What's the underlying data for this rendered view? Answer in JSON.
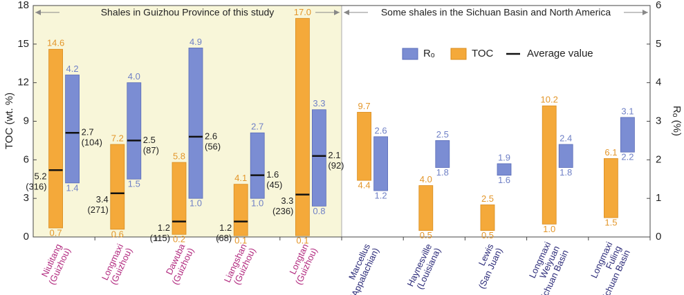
{
  "chart_data": {
    "type": "range-bar",
    "ylabel": "TOC (wt. %)",
    "y2label": "Rₒ (%)",
    "ylim": [
      0,
      18
    ],
    "yticks": [
      0,
      3,
      6,
      9,
      12,
      15,
      18
    ],
    "y2lim": [
      0,
      6
    ],
    "y2ticks": [
      0,
      1,
      2,
      3,
      4,
      5,
      6
    ],
    "categories": [
      [
        "Niutitang",
        "(Guizhou)"
      ],
      [
        "Longmaxi",
        "(Guizhou)"
      ],
      [
        "Dawuba",
        "(Guizhou)"
      ],
      [
        "Liangshan",
        "(Guizhou)"
      ],
      [
        "Longtan",
        "(Guizhou)"
      ],
      [
        "Marcellus",
        "(Appalachian)"
      ],
      [
        "Haynesville",
        "(Louisiana)"
      ],
      [
        "Lewis",
        "(San Juan)"
      ],
      [
        "Longmaxi",
        "Weiyuan",
        "Sichuan Basin"
      ],
      [
        "Longmaxi",
        "Fuling",
        "Sichuan Basin"
      ]
    ],
    "category_group": [
      0,
      0,
      0,
      0,
      0,
      1,
      1,
      1,
      1,
      1
    ],
    "groups": [
      {
        "title": "Shales in Guizhou Province of this study",
        "background": "#f8f6d9",
        "label_color": "#b1287e"
      },
      {
        "title": "Some shales in the Sichuan Basin and North America",
        "background": "#ffffff",
        "label_color": "#2b2a78"
      }
    ],
    "legend_average_label": "Average value",
    "series": [
      {
        "name": "TOC",
        "axis": "y",
        "color": "#f4a93a",
        "stroke": "#d88c1e",
        "label_color": "#e3962a",
        "low": [
          0.7,
          0.6,
          0.2,
          0.1,
          0.1,
          4.4,
          0.5,
          0.5,
          1.0,
          1.5
        ],
        "high": [
          14.6,
          7.2,
          5.8,
          4.1,
          17.0,
          9.7,
          4.0,
          2.5,
          10.2,
          6.1
        ],
        "low_labels": [
          "0.7",
          "0.6",
          "0.2",
          "0.1",
          "0.1",
          "4.4",
          "0.5",
          "0.5",
          "1.0",
          "1.5"
        ],
        "high_labels": [
          "14.6",
          "7.2",
          "5.8",
          "4.1",
          "17.0",
          "9.7",
          "4.0",
          "2.5",
          "10.2",
          "6.1"
        ],
        "average": [
          5.2,
          3.4,
          1.2,
          1.2,
          3.3,
          null,
          null,
          null,
          null,
          null
        ],
        "sample_labels": [
          "(316)",
          "(271)",
          "(115)",
          "(68)",
          "(236)",
          null,
          null,
          null,
          null,
          null
        ]
      },
      {
        "name": "Rₒ",
        "axis": "y2",
        "color": "#7b8dd3",
        "stroke": "#5a6cb8",
        "label_color": "#6f80c6",
        "low": [
          1.4,
          1.5,
          1.0,
          1.0,
          0.8,
          1.2,
          1.8,
          1.6,
          1.8,
          2.2
        ],
        "high": [
          4.2,
          4.0,
          4.9,
          2.7,
          3.3,
          2.6,
          2.5,
          1.9,
          2.4,
          3.1
        ],
        "low_labels": [
          "1.4",
          "1.5",
          "1.0",
          "1.0",
          "0.8",
          "1.2",
          "1.8",
          "1.6",
          "1.8",
          "2.2"
        ],
        "high_labels": [
          "4.2",
          "4.0",
          "4.9",
          "2.7",
          "3.3",
          "2.6",
          "2.5",
          "1.9",
          "2.4",
          "3.1"
        ],
        "average": [
          2.7,
          2.5,
          2.6,
          1.6,
          2.1,
          null,
          null,
          null,
          null,
          null
        ],
        "sample_labels": [
          "(104)",
          "(87)",
          "(56)",
          "(45)",
          "(92)",
          null,
          null,
          null,
          null,
          null
        ]
      }
    ]
  }
}
